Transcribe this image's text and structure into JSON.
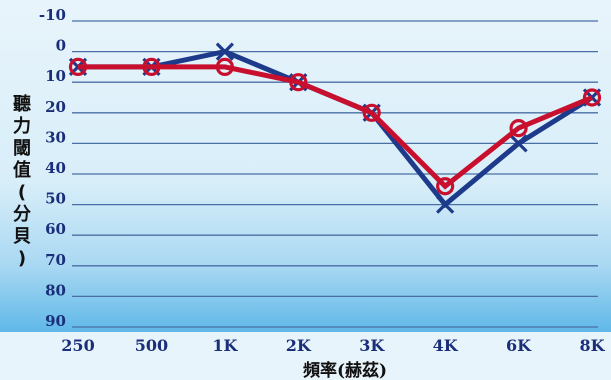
{
  "chart_data": {
    "type": "line",
    "ylabel": "聽力閾值(分貝)",
    "xlabel": "頻率(赫茲)",
    "categories": [
      "250",
      "500",
      "1K",
      "2K",
      "3K",
      "4K",
      "6K",
      "8K"
    ],
    "y_ticks": [
      "-10",
      "0",
      "10",
      "20",
      "30",
      "40",
      "50",
      "60",
      "70",
      "80",
      "90"
    ],
    "ylim": [
      -10,
      90
    ],
    "y_inverted": true,
    "grid": true,
    "series": [
      {
        "color": "#c8102e",
        "marker": "circle",
        "values": [
          5,
          5,
          5,
          10,
          20,
          44,
          25,
          15
        ]
      },
      {
        "color": "#1e3a8a",
        "marker": "x",
        "values": [
          5,
          5,
          0,
          10,
          20,
          50,
          30,
          15
        ]
      }
    ],
    "colors": {
      "grid": "#4a6fa5",
      "tick_text": "#1a2e7a",
      "bg_top": "#e8f4fb",
      "bg_bottom": "#5fb8e8"
    }
  }
}
